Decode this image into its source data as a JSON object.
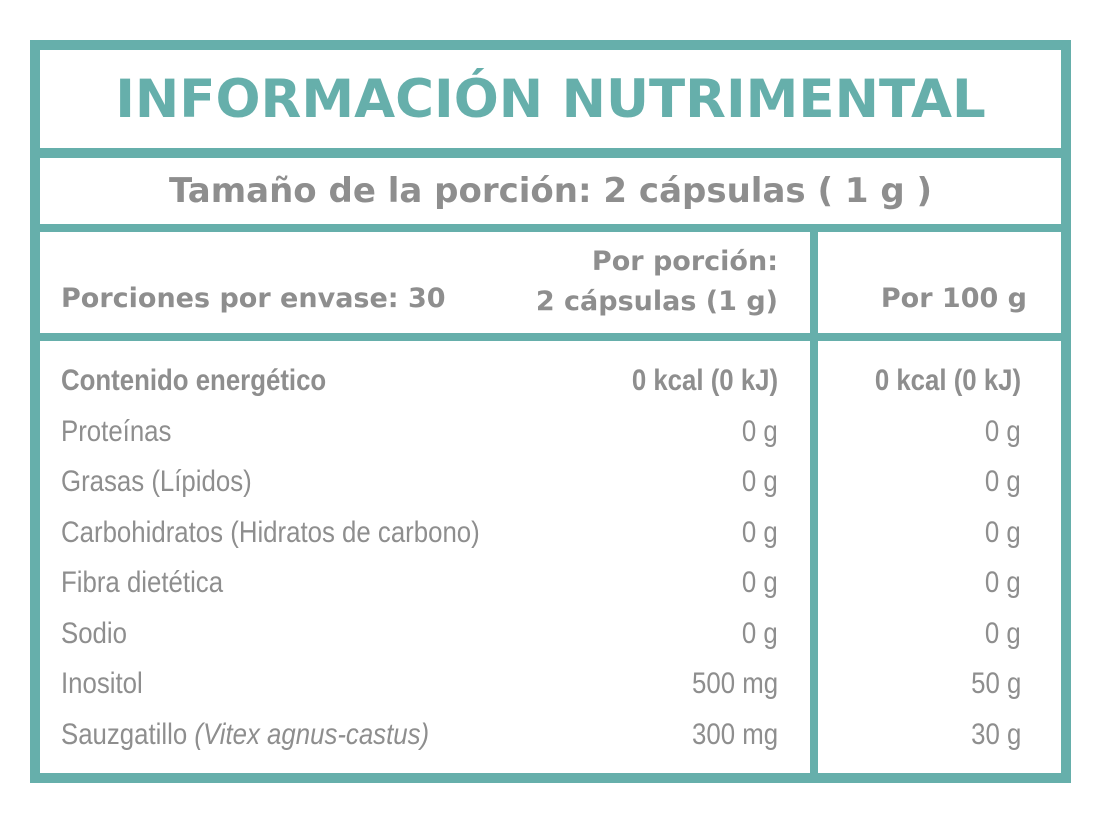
{
  "title": "INFORMACIÓN NUTRIMENTAL",
  "serving_size": "Tamaño de la porción: 2 cápsulas ( 1 g )",
  "header": {
    "servings_per_container": "Porciones por envase: 30",
    "per_serving_line1": "Por porción:",
    "per_serving_line2": "2 cápsulas (1 g)",
    "per_100g": "Por 100 g"
  },
  "rows": [
    {
      "label": "Contenido energético",
      "per_serving": "0 kcal (0 kJ)",
      "per_100g": "0 kcal (0 kJ)"
    },
    {
      "label": "Proteínas",
      "per_serving": "0 g",
      "per_100g": "0 g"
    },
    {
      "label": "Grasas (Lípidos)",
      "per_serving": "0 g",
      "per_100g": "0 g"
    },
    {
      "label": "Carbohidratos (Hidratos de carbono)",
      "per_serving": "0 g",
      "per_100g": "0 g"
    },
    {
      "label": "Fibra dietética",
      "per_serving": "0 g",
      "per_100g": "0 g"
    },
    {
      "label": "Sodio",
      "per_serving": "0 g",
      "per_100g": "0 g"
    },
    {
      "label": "Inositol",
      "per_serving": "500 mg",
      "per_100g": "50 g"
    },
    {
      "label": "Sauzgatillo",
      "label_italic": "(Vitex agnus-castus)",
      "per_serving": "300 mg",
      "per_100g": "30 g"
    }
  ],
  "colors": {
    "accent": "#66afab",
    "text": "#8e8e8e"
  }
}
